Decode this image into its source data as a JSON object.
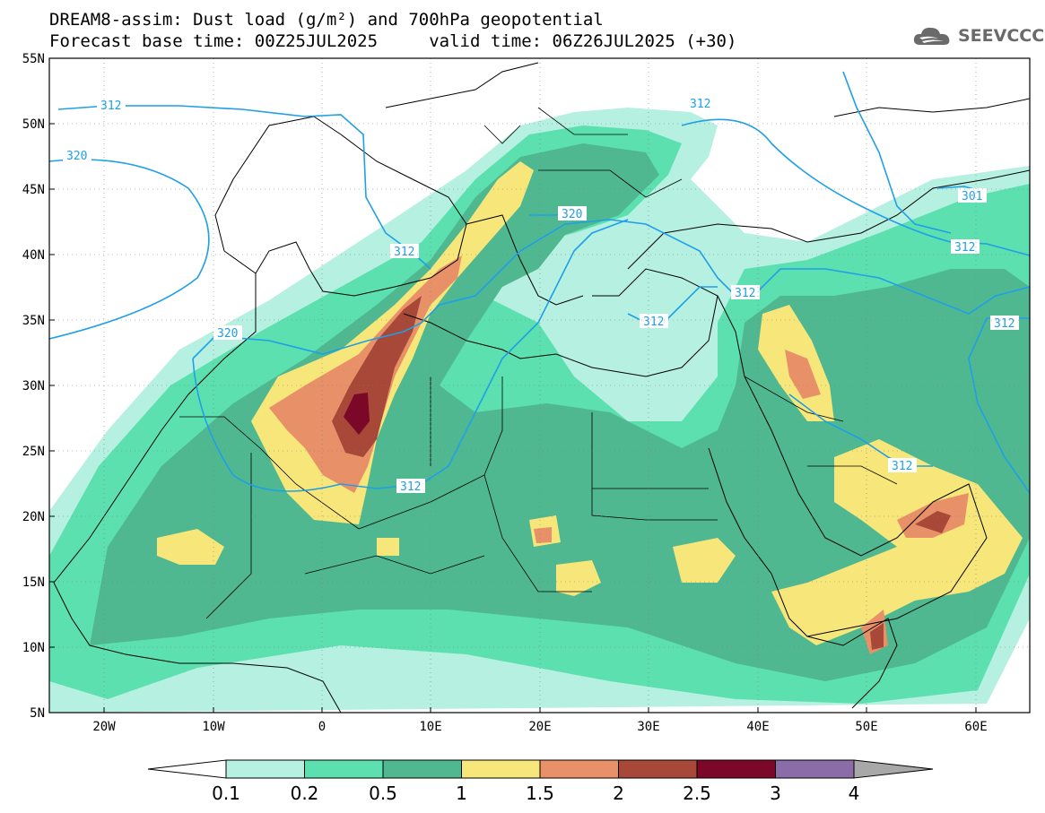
{
  "header": {
    "title_line1": "DREAM8-assim: Dust load (g/m²) and 700hPa geopotential",
    "title_line2": "Forecast base time: 00Z25JUL2025     valid time: 06Z26JUL2025 (+30)"
  },
  "logo": {
    "text": "SEEVCCC",
    "icon": "cloud-logo-icon"
  },
  "map": {
    "lat_labels": [
      "55N",
      "50N",
      "45N",
      "40N",
      "35N",
      "30N",
      "25N",
      "20N",
      "15N",
      "10N",
      "5N"
    ],
    "lon_labels": [
      "20W",
      "10W",
      "0",
      "10E",
      "20E",
      "30E",
      "40E",
      "50E",
      "60E"
    ],
    "contour_labels": [
      "312",
      "320",
      "312",
      "320",
      "312",
      "312",
      "312",
      "320",
      "312",
      "312",
      "301",
      "312",
      "312"
    ]
  },
  "colorbar": {
    "labels": [
      "0.1",
      "0.2",
      "0.5",
      "1",
      "1.5",
      "2",
      "2.5",
      "3",
      "4"
    ],
    "colors": [
      "#b5f0e0",
      "#5ce0b0",
      "#4fb890",
      "#f7e67a",
      "#e89068",
      "#a84838",
      "#7b0828",
      "#8c6ca8",
      "#a8a8a8"
    ]
  }
}
